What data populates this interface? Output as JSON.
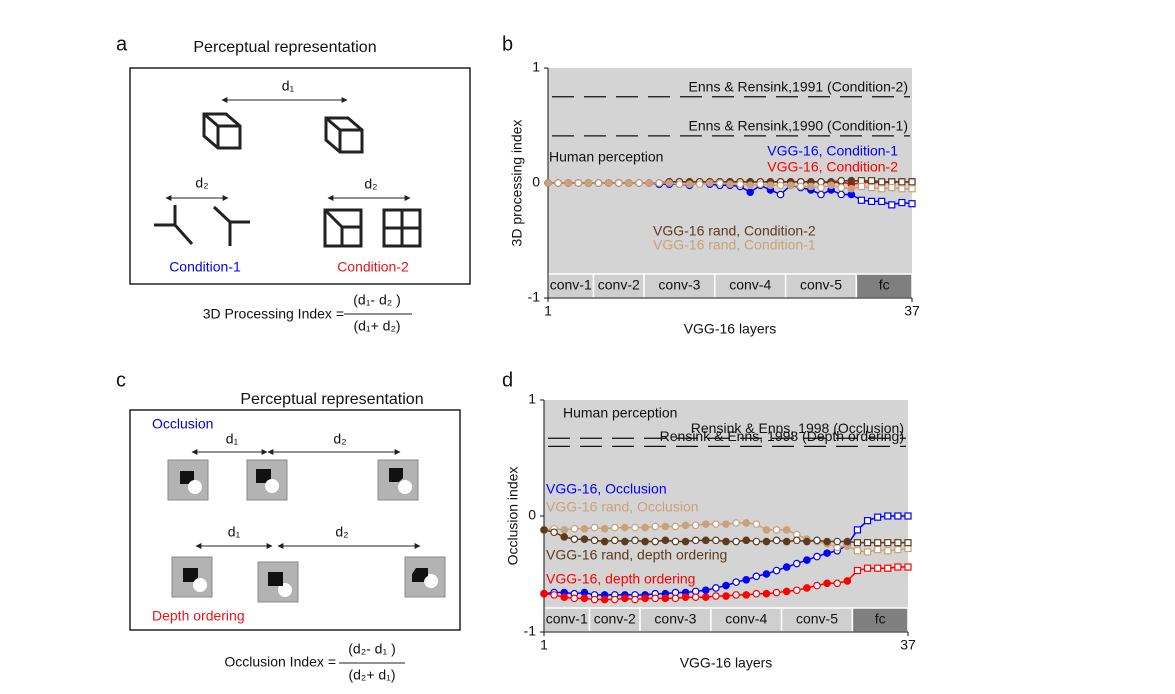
{
  "panel_a": {
    "letter": "a",
    "title": "Perceptual representation",
    "distance_labels": [
      "d₁",
      "d₂",
      "d₂"
    ],
    "conditions": [
      "Condition-1",
      "Condition-2"
    ],
    "formula": {
      "name": "3D Processing Index =",
      "numerator": "(d₁- d₂ )",
      "denominator": "(d₁+ d₂)"
    }
  },
  "panel_c": {
    "letter": "c",
    "title": "Perceptual representation",
    "conditions": [
      "Occlusion",
      "Depth ordering"
    ],
    "distance_labels": [
      "d₁",
      "d₂",
      "d₁",
      "d₂"
    ],
    "formula": {
      "name": "Occlusion Index =",
      "numerator": "(d₂- d₁ )",
      "denominator": "(d₂+ d₁)"
    }
  },
  "chart_data": [
    {
      "type": "line",
      "label": "b",
      "xlabel": "VGG-16 layers",
      "ylabel": "3D processing index",
      "xlim": [
        1,
        37
      ],
      "xticks": [
        1,
        37
      ],
      "ylim": [
        -1,
        1
      ],
      "yticks": [
        -1,
        0,
        1
      ],
      "background": "#d4d4d4",
      "annotation": "Human perception",
      "reference_lines": [
        {
          "label": "Enns & Rensink,1991 (Condition-2)",
          "value": 0.75
        },
        {
          "label": "Enns & Rensink,1990 (Condition-1)",
          "value": 0.41
        }
      ],
      "blocks": [
        {
          "label": "conv-1",
          "range": [
            1,
            5.5
          ],
          "color": "#cfcfcf"
        },
        {
          "label": "conv-2",
          "range": [
            5.5,
            10.5
          ],
          "color": "#cfcfcf"
        },
        {
          "label": "conv-3",
          "range": [
            10.5,
            17.5
          ],
          "color": "#cfcfcf"
        },
        {
          "label": "conv-4",
          "range": [
            17.5,
            24.5
          ],
          "color": "#cfcfcf"
        },
        {
          "label": "conv-5",
          "range": [
            24.5,
            31.5
          ],
          "color": "#cfcfcf"
        },
        {
          "label": "fc",
          "range": [
            31.5,
            37
          ],
          "color": "#7f7f7f"
        }
      ],
      "x": [
        1,
        2,
        3,
        4,
        5,
        6,
        7,
        8,
        9,
        10,
        11,
        12,
        13,
        14,
        15,
        16,
        17,
        18,
        19,
        20,
        21,
        22,
        23,
        24,
        25,
        26,
        27,
        28,
        29,
        30,
        31,
        32,
        33,
        34,
        35,
        36,
        37
      ],
      "series": [
        {
          "name": "VGG-16, Condition-1",
          "color": "#0000ff",
          "values": [
            0,
            0,
            0,
            0,
            0,
            0,
            0,
            0,
            0,
            0,
            0,
            -0.01,
            -0.01,
            -0.01,
            -0.02,
            0,
            -0.01,
            -0.02,
            -0.02,
            -0.03,
            -0.08,
            -0.02,
            -0.06,
            -0.1,
            -0.02,
            -0.04,
            -0.06,
            -0.1,
            -0.06,
            -0.1,
            -0.1,
            -0.15,
            -0.16,
            -0.16,
            -0.19,
            -0.17,
            -0.18
          ]
        },
        {
          "name": "VGG-16, Condition-2",
          "color": "#ff0000",
          "values": [
            0,
            0,
            0,
            0,
            0,
            0,
            0,
            0,
            0,
            0,
            0,
            0,
            0.01,
            0.01,
            0.01,
            0.01,
            0.01,
            0.01,
            0.01,
            0.01,
            0.01,
            0.01,
            0.01,
            0.01,
            0.01,
            0.01,
            0.01,
            0.01,
            0,
            0.01,
            -0.01,
            0,
            0.01,
            0,
            0.01,
            0.01,
            0.01
          ]
        },
        {
          "name": "VGG-16 rand, Condition-2",
          "color": "#5c3b1e",
          "values": [
            0,
            0,
            0,
            0,
            0,
            0,
            0,
            0,
            0,
            0,
            0,
            0,
            0.01,
            0.01,
            0.01,
            0.01,
            0.01,
            0.01,
            0.01,
            0.01,
            0.01,
            0.01,
            0.01,
            0.01,
            0.01,
            0.01,
            0.01,
            0.01,
            0.01,
            0.02,
            0.02,
            0.02,
            0.02,
            0.01,
            0.01,
            0.01,
            0.01
          ]
        },
        {
          "name": "VGG-16 rand, Condition-1",
          "color": "#c9a27b",
          "values": [
            0,
            0,
            0,
            0,
            0,
            0,
            0,
            0,
            0,
            0,
            0,
            0,
            0,
            -0.01,
            -0.01,
            -0.01,
            0,
            0,
            -0.01,
            -0.01,
            -0.02,
            -0.01,
            -0.02,
            -0.02,
            -0.02,
            -0.03,
            -0.03,
            -0.04,
            -0.02,
            -0.04,
            -0.05,
            -0.03,
            -0.04,
            -0.05,
            -0.04,
            -0.05,
            -0.05
          ]
        }
      ]
    },
    {
      "type": "line",
      "label": "d",
      "xlabel": "VGG-16 layers",
      "ylabel": "Occlusion index",
      "xlim": [
        1,
        37
      ],
      "xticks": [
        1,
        37
      ],
      "ylim": [
        -1,
        1
      ],
      "yticks": [
        -1,
        0,
        1
      ],
      "background": "#d4d4d4",
      "annotation": "Human perception",
      "reference_lines": [
        {
          "label": "Rensink & Enns, 1998 (Occlusion)",
          "value": 0.67
        },
        {
          "label": "Rensink & Enns, 1998 (Depth ordering)",
          "value": 0.6
        }
      ],
      "blocks": [
        {
          "label": "conv-1",
          "range": [
            1,
            5.5
          ],
          "color": "#cfcfcf"
        },
        {
          "label": "conv-2",
          "range": [
            5.5,
            10.5
          ],
          "color": "#cfcfcf"
        },
        {
          "label": "conv-3",
          "range": [
            10.5,
            17.5
          ],
          "color": "#cfcfcf"
        },
        {
          "label": "conv-4",
          "range": [
            17.5,
            24.5
          ],
          "color": "#cfcfcf"
        },
        {
          "label": "conv-5",
          "range": [
            24.5,
            31.5
          ],
          "color": "#cfcfcf"
        },
        {
          "label": "fc",
          "range": [
            31.5,
            37
          ],
          "color": "#7f7f7f"
        }
      ],
      "x": [
        1,
        2,
        3,
        4,
        5,
        6,
        7,
        8,
        9,
        10,
        11,
        12,
        13,
        14,
        15,
        16,
        17,
        18,
        19,
        20,
        21,
        22,
        23,
        24,
        25,
        26,
        27,
        28,
        29,
        30,
        31,
        32,
        33,
        34,
        35,
        36,
        37
      ],
      "series": [
        {
          "name": "VGG-16, Occlusion",
          "color": "#0000ff",
          "values": [
            -0.67,
            -0.66,
            -0.66,
            -0.67,
            -0.66,
            -0.68,
            -0.68,
            -0.68,
            -0.68,
            -0.68,
            -0.68,
            -0.67,
            -0.67,
            -0.66,
            -0.66,
            -0.65,
            -0.64,
            -0.62,
            -0.6,
            -0.57,
            -0.55,
            -0.52,
            -0.5,
            -0.47,
            -0.44,
            -0.41,
            -0.38,
            -0.35,
            -0.32,
            -0.3,
            -0.25,
            -0.12,
            -0.04,
            -0.01,
            0,
            0,
            0
          ]
        },
        {
          "name": "VGG-16 rand, Occlusion",
          "color": "#c9a27b",
          "values": [
            -0.12,
            -0.11,
            -0.12,
            -0.11,
            -0.11,
            -0.1,
            -0.11,
            -0.1,
            -0.1,
            -0.1,
            -0.1,
            -0.09,
            -0.09,
            -0.09,
            -0.08,
            -0.08,
            -0.07,
            -0.07,
            -0.07,
            -0.06,
            -0.06,
            -0.07,
            -0.12,
            -0.12,
            -0.12,
            -0.16,
            -0.2,
            -0.22,
            -0.24,
            -0.27,
            -0.26,
            -0.3,
            -0.31,
            -0.29,
            -0.3,
            -0.29,
            -0.28
          ]
        },
        {
          "name": "VGG-16 rand, depth ordering",
          "color": "#5c3b1e",
          "values": [
            -0.12,
            -0.14,
            -0.18,
            -0.2,
            -0.2,
            -0.21,
            -0.22,
            -0.21,
            -0.22,
            -0.21,
            -0.22,
            -0.22,
            -0.21,
            -0.22,
            -0.22,
            -0.21,
            -0.21,
            -0.21,
            -0.22,
            -0.22,
            -0.21,
            -0.22,
            -0.22,
            -0.21,
            -0.22,
            -0.21,
            -0.22,
            -0.21,
            -0.22,
            -0.22,
            -0.22,
            -0.23,
            -0.23,
            -0.23,
            -0.23,
            -0.23,
            -0.23
          ]
        },
        {
          "name": "VGG-16, depth ordering",
          "color": "#ff0000",
          "values": [
            -0.67,
            -0.68,
            -0.7,
            -0.71,
            -0.71,
            -0.72,
            -0.72,
            -0.72,
            -0.71,
            -0.72,
            -0.71,
            -0.71,
            -0.71,
            -0.71,
            -0.7,
            -0.7,
            -0.7,
            -0.69,
            -0.69,
            -0.68,
            -0.68,
            -0.67,
            -0.67,
            -0.66,
            -0.65,
            -0.64,
            -0.62,
            -0.6,
            -0.58,
            -0.58,
            -0.56,
            -0.47,
            -0.45,
            -0.45,
            -0.45,
            -0.44,
            -0.44
          ]
        }
      ]
    }
  ]
}
